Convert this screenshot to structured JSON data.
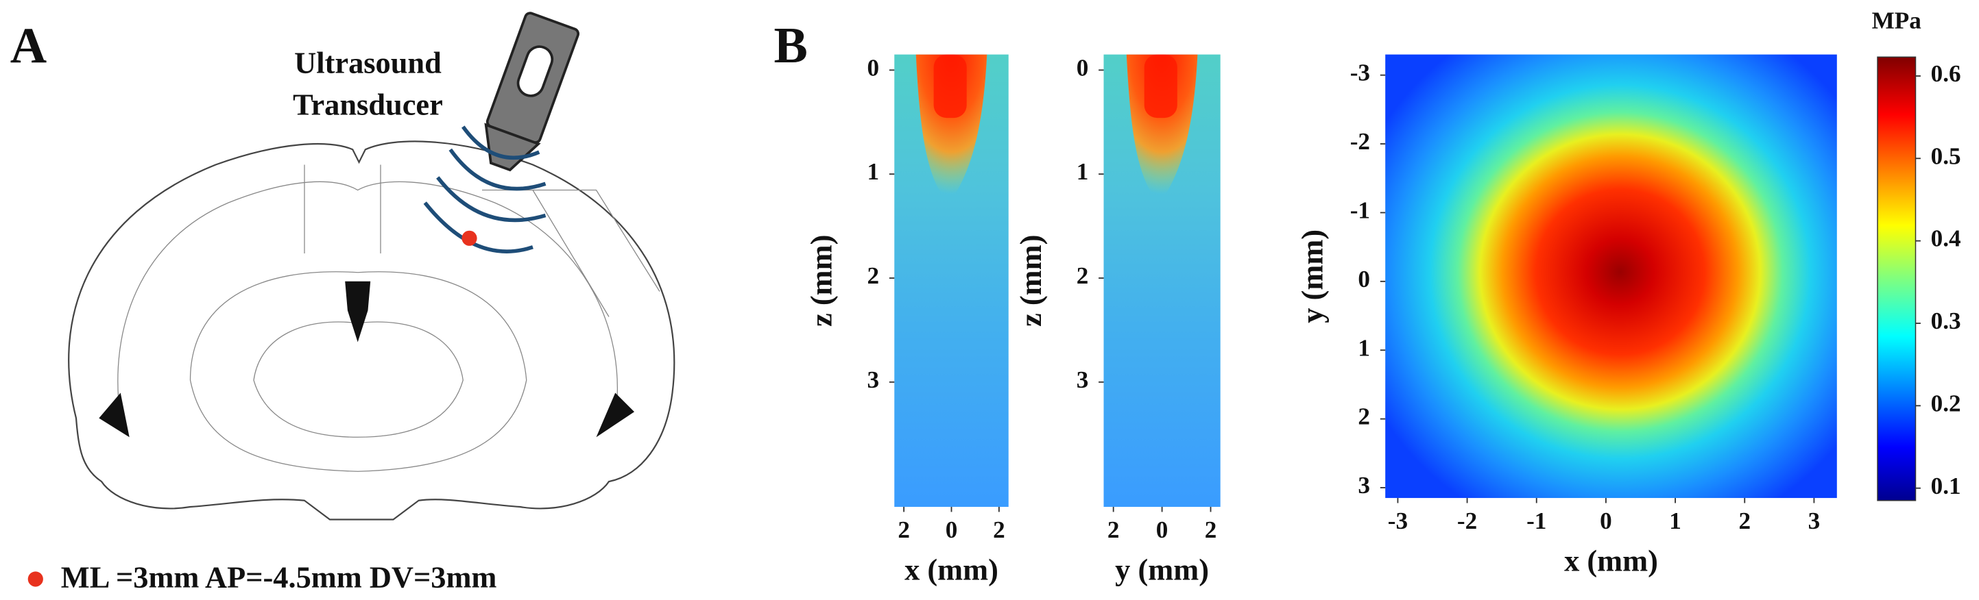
{
  "panel_a": {
    "label": "A",
    "transducer_label": [
      "Ultrasound",
      "Transducer"
    ],
    "coordinates": "ML =3mm AP=-4.5mm DV=3mm"
  },
  "panel_b": {
    "label": "B",
    "plots": [
      {
        "type": "heatmap",
        "xlabel": "x (mm)",
        "ylabel": "z (mm)",
        "xlim": [
          -2.4,
          2.4
        ],
        "ylim": [
          -0.15,
          4.2
        ],
        "xticks": [
          {
            "value": -2,
            "label": "2"
          },
          0,
          2
        ],
        "yticks": [
          0,
          1,
          2,
          3
        ]
      },
      {
        "type": "heatmap",
        "xlabel": "y (mm)",
        "ylabel": "z (mm)",
        "xlim": [
          -2.4,
          2.4
        ],
        "ylim": [
          -0.15,
          4.2
        ],
        "xticks": [
          {
            "value": -2,
            "label": "2"
          },
          0,
          2
        ],
        "yticks": [
          0,
          1,
          2,
          3
        ]
      },
      {
        "type": "heatmap",
        "xlabel": "x (mm)",
        "ylabel": "y (mm)",
        "xlim": [
          -3.18,
          3.33
        ],
        "ylim": [
          -3.3,
          3.15
        ],
        "xticks": [
          -3,
          -2,
          -1,
          0,
          1,
          2,
          3
        ],
        "yticks": [
          -3,
          -2,
          -1,
          0,
          1,
          2,
          3
        ]
      }
    ],
    "colorbar": {
      "title": "MPa",
      "lim": [
        0.085,
        0.623
      ],
      "ticks": [
        0.1,
        0.2,
        0.3,
        0.4,
        0.5,
        0.6
      ]
    }
  }
}
